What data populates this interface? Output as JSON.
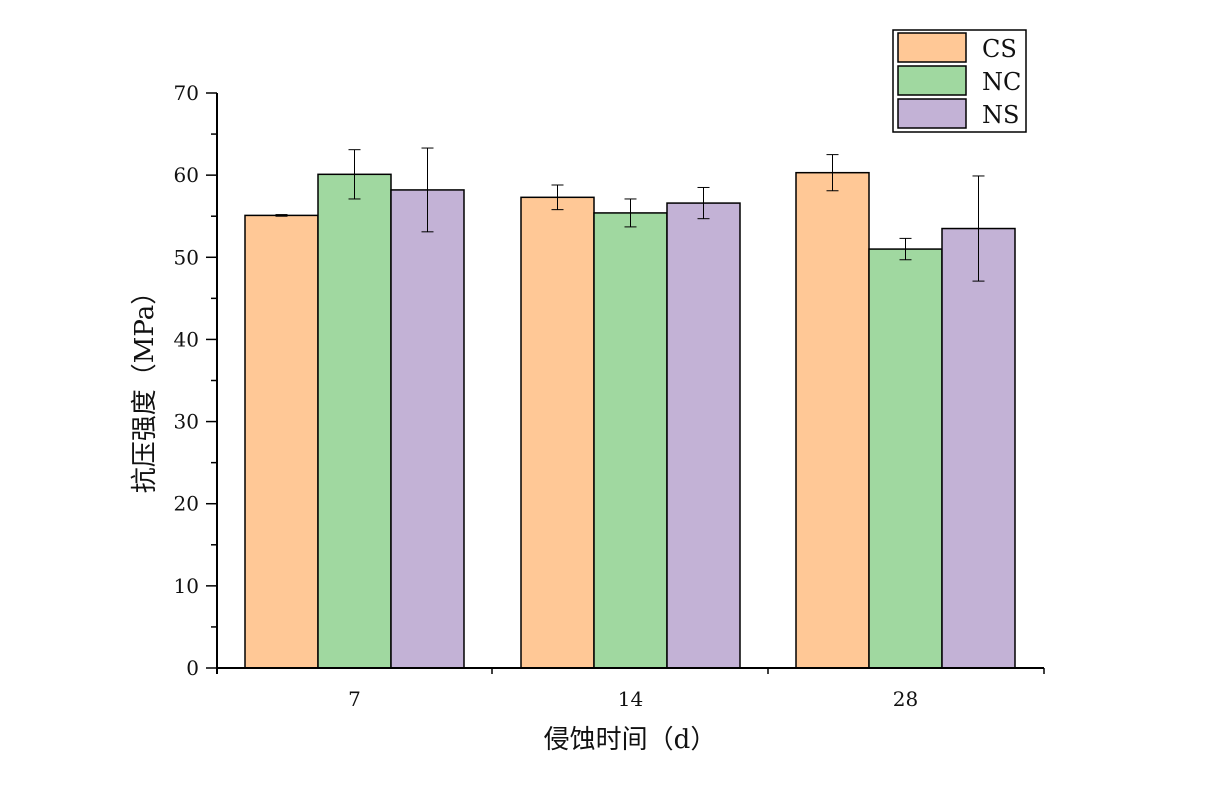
{
  "chart_data": {
    "type": "bar",
    "title": "",
    "xlabel": "侵蚀时间（d）",
    "ylabel": "抗压强度（MPa）",
    "categories": [
      "7",
      "14",
      "28"
    ],
    "ylim": [
      0,
      70
    ],
    "yticks": [
      "0",
      "10",
      "20",
      "30",
      "40",
      "50",
      "60",
      "70"
    ],
    "series": [
      {
        "name": "CS",
        "color": "#FFC896",
        "values": [
          55.1,
          57.3,
          60.3
        ],
        "errors": [
          0.1,
          1.5,
          2.2
        ]
      },
      {
        "name": "NC",
        "color": "#A0D8A0",
        "values": [
          60.1,
          55.4,
          51.0
        ],
        "errors": [
          3.0,
          1.7,
          1.3
        ]
      },
      {
        "name": "NS",
        "color": "#C3B2D6",
        "values": [
          58.2,
          56.6,
          53.5
        ],
        "errors": [
          5.1,
          1.9,
          6.4
        ]
      }
    ],
    "legend_position": "top-right",
    "grid": false
  }
}
